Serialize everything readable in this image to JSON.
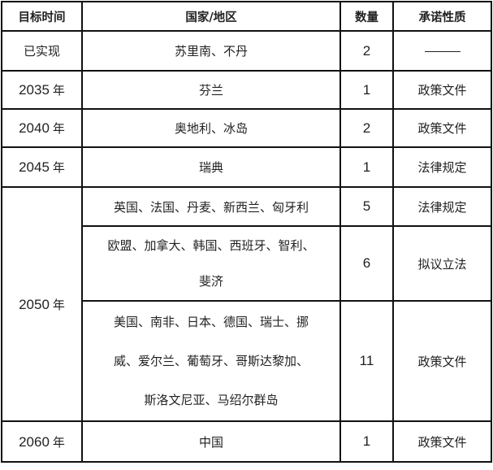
{
  "headers": [
    "目标时间",
    "国家/地区",
    "数量",
    "承诺性质"
  ],
  "rows": [
    {
      "year": "已实现",
      "countries": [
        "苏里南、不丹"
      ],
      "count": "2",
      "nature": "——"
    },
    {
      "year": "2035",
      "year_suffix": "年",
      "countries": [
        "芬兰"
      ],
      "count": "1",
      "nature": "政策文件"
    },
    {
      "year": "2040",
      "year_suffix": "年",
      "countries": [
        "奥地利、冰岛"
      ],
      "count": "2",
      "nature": "政策文件"
    },
    {
      "year": "2045",
      "year_suffix": "年",
      "countries": [
        "瑞典"
      ],
      "count": "1",
      "nature": "法律规定"
    },
    {
      "year": "2050",
      "year_suffix": "年",
      "countries": [
        "英国、法国、丹麦、新西兰、匈牙利"
      ],
      "count": "5",
      "nature": "法律规定"
    },
    {
      "countries": [
        "欧盟、加拿大、韩国、西班牙、智利、",
        "斐济"
      ],
      "count": "6",
      "nature": "拟议立法"
    },
    {
      "countries": [
        "美国、南非、日本、德国、瑞士、挪",
        "威、爱尔兰、葡萄牙、哥斯达黎加、",
        "斯洛文尼亚、马绍尔群岛"
      ],
      "count": "11",
      "nature": "政策文件"
    },
    {
      "year": "2060",
      "year_suffix": "年",
      "countries": [
        "中国"
      ],
      "count": "1",
      "nature": "政策文件"
    }
  ]
}
